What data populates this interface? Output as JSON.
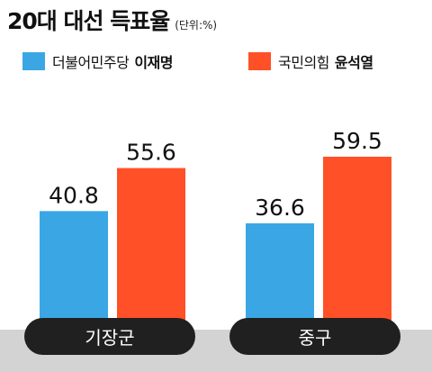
{
  "title": "20대 대선 득표율",
  "unit": "(단위:%)",
  "legend": [
    {
      "party": "더불어민주당",
      "candidate": "이재명",
      "color": "#3aa7e4"
    },
    {
      "party": "국민의힘",
      "candidate": "윤석열",
      "color": "#ff5027"
    }
  ],
  "colors": {
    "pill_bg": "#202020",
    "pill_text": "#ffffff",
    "floor": "#d3d3d3",
    "value_text": "#111111"
  },
  "chart_data": {
    "type": "bar",
    "title": "20대 대선 득표율",
    "unit": "(단위:%)",
    "categories": [
      "기장군",
      "중구"
    ],
    "series": [
      {
        "name": "더불어민주당 이재명",
        "values": [
          40.8,
          36.6
        ]
      },
      {
        "name": "국민의힘 윤석열",
        "values": [
          55.6,
          59.5
        ]
      }
    ],
    "ylim": [
      0,
      70
    ],
    "grid": false,
    "legend_position": "top"
  }
}
